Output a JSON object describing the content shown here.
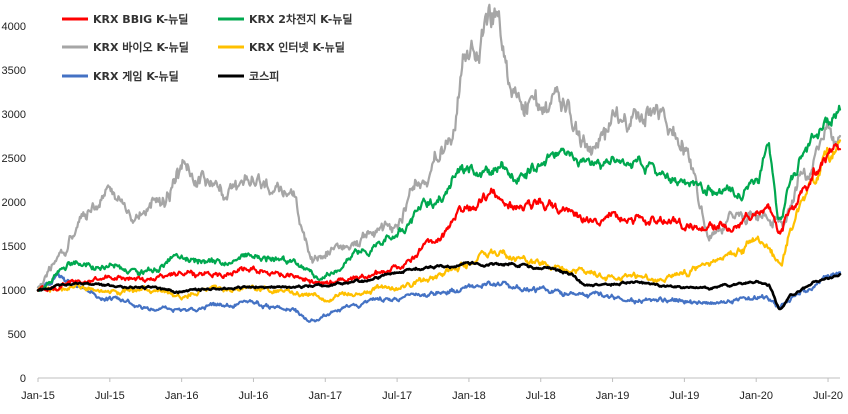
{
  "chart_data": {
    "type": "line",
    "title": "",
    "xlabel": "",
    "ylabel": "",
    "ylim": [
      0,
      4000
    ],
    "yticks": [
      0,
      500,
      1000,
      1500,
      2000,
      2500,
      3000,
      3500,
      4000
    ],
    "xlim": [
      "2015-01",
      "2020-08"
    ],
    "xticks": [
      "Jan-15",
      "Jul-15",
      "Jan-16",
      "Jul-16",
      "Jan-17",
      "Jul-17",
      "Jan-18",
      "Jul-18",
      "Jan-19",
      "Jul-19",
      "Jan-20",
      "Jul-20"
    ],
    "legend_position": "top-left",
    "grid": false,
    "series": [
      {
        "name": "KRX BBIG K-뉴딜",
        "color": "#ff0000",
        "width": 2.2,
        "x": [
          "2015-01",
          "2015-04",
          "2015-07",
          "2015-10",
          "2016-01",
          "2016-04",
          "2016-07",
          "2016-10",
          "2017-01",
          "2017-04",
          "2017-07",
          "2017-10",
          "2018-01",
          "2018-03",
          "2018-05",
          "2018-07",
          "2018-09",
          "2018-11",
          "2019-01",
          "2019-03",
          "2019-05",
          "2019-07",
          "2019-09",
          "2019-11",
          "2020-01",
          "2020-02",
          "2020-03",
          "2020-04",
          "2020-05",
          "2020-06",
          "2020-07",
          "2020-08"
        ],
        "values": [
          1000,
          1080,
          1150,
          1120,
          1200,
          1180,
          1250,
          1150,
          1080,
          1150,
          1250,
          1550,
          1950,
          2100,
          1950,
          2000,
          1900,
          1800,
          1850,
          1800,
          1780,
          1750,
          1720,
          1750,
          1850,
          1950,
          1650,
          1950,
          2150,
          2350,
          2500,
          2600
        ]
      },
      {
        "name": "KRX 2차전지 K-뉴딜",
        "color": "#00a84f",
        "width": 2.2,
        "x": [
          "2015-01",
          "2015-04",
          "2015-07",
          "2015-10",
          "2016-01",
          "2016-04",
          "2016-07",
          "2016-10",
          "2017-01",
          "2017-04",
          "2017-07",
          "2017-10",
          "2018-01",
          "2018-03",
          "2018-05",
          "2018-07",
          "2018-09",
          "2018-11",
          "2019-01",
          "2019-03",
          "2019-05",
          "2019-07",
          "2019-09",
          "2019-11",
          "2020-01",
          "2020-02",
          "2020-03",
          "2020-04",
          "2020-05",
          "2020-06",
          "2020-07",
          "2020-08"
        ],
        "values": [
          1000,
          1300,
          1250,
          1200,
          1350,
          1320,
          1400,
          1330,
          1150,
          1450,
          1650,
          2000,
          2400,
          2350,
          2300,
          2400,
          2500,
          2450,
          2400,
          2450,
          2300,
          2200,
          2150,
          2100,
          2200,
          2600,
          1800,
          2300,
          2600,
          2750,
          2900,
          3050
        ]
      },
      {
        "name": "KRX 바이오 K-뉴딜",
        "color": "#a6a6a6",
        "width": 2.2,
        "x": [
          "2015-01",
          "2015-03",
          "2015-05",
          "2015-07",
          "2015-09",
          "2015-11",
          "2016-01",
          "2016-04",
          "2016-07",
          "2016-10",
          "2016-12",
          "2017-03",
          "2017-06",
          "2017-09",
          "2017-11",
          "2018-01",
          "2018-03",
          "2018-05",
          "2018-07",
          "2018-09",
          "2018-11",
          "2019-01",
          "2019-03",
          "2019-05",
          "2019-07",
          "2019-09",
          "2019-11",
          "2020-01",
          "2020-03",
          "2020-05",
          "2020-07",
          "2020-08"
        ],
        "values": [
          1050,
          1400,
          1900,
          2150,
          1800,
          2000,
          2350,
          2150,
          2200,
          2050,
          1400,
          1500,
          1700,
          2200,
          2650,
          3600,
          4050,
          3200,
          3150,
          3050,
          2600,
          2900,
          3000,
          2900,
          2600,
          1700,
          1800,
          1900,
          1750,
          2300,
          2750,
          2750
        ]
      },
      {
        "name": "KRX 인터넷 K-뉴딜",
        "color": "#ffc000",
        "width": 2.2,
        "x": [
          "2015-01",
          "2015-04",
          "2015-07",
          "2015-10",
          "2016-01",
          "2016-04",
          "2016-07",
          "2016-10",
          "2017-01",
          "2017-04",
          "2017-07",
          "2017-10",
          "2018-01",
          "2018-03",
          "2018-05",
          "2018-07",
          "2018-09",
          "2018-11",
          "2019-01",
          "2019-03",
          "2019-05",
          "2019-07",
          "2019-09",
          "2019-11",
          "2020-01",
          "2020-02",
          "2020-03",
          "2020-04",
          "2020-05",
          "2020-06",
          "2020-07",
          "2020-08"
        ],
        "values": [
          1000,
          1050,
          980,
          1000,
          950,
          1000,
          1000,
          980,
          920,
          980,
          1050,
          1150,
          1300,
          1450,
          1350,
          1300,
          1250,
          1200,
          1150,
          1150,
          1100,
          1200,
          1300,
          1400,
          1550,
          1500,
          1300,
          1700,
          2100,
          2300,
          2500,
          2700
        ]
      },
      {
        "name": "KRX 게임 K-뉴딜",
        "color": "#4472c4",
        "width": 2.2,
        "x": [
          "2015-01",
          "2015-03",
          "2015-05",
          "2015-07",
          "2015-10",
          "2016-01",
          "2016-04",
          "2016-07",
          "2016-10",
          "2016-12",
          "2017-03",
          "2017-06",
          "2017-09",
          "2017-12",
          "2018-03",
          "2018-06",
          "2018-09",
          "2018-12",
          "2019-03",
          "2019-06",
          "2019-09",
          "2019-12",
          "2020-02",
          "2020-03",
          "2020-05",
          "2020-07",
          "2020-08"
        ],
        "values": [
          1000,
          1150,
          1000,
          900,
          800,
          780,
          820,
          840,
          780,
          650,
          820,
          880,
          950,
          1000,
          1080,
          1000,
          950,
          950,
          900,
          880,
          850,
          900,
          900,
          800,
          1000,
          1150,
          1200
        ]
      },
      {
        "name": "코스피",
        "color": "#000000",
        "width": 2.6,
        "x": [
          "2015-01",
          "2015-04",
          "2015-07",
          "2015-10",
          "2016-01",
          "2016-04",
          "2016-07",
          "2016-10",
          "2017-01",
          "2017-04",
          "2017-07",
          "2017-10",
          "2018-01",
          "2018-03",
          "2018-05",
          "2018-07",
          "2018-09",
          "2018-11",
          "2019-01",
          "2019-03",
          "2019-05",
          "2019-07",
          "2019-09",
          "2019-11",
          "2020-01",
          "2020-02",
          "2020-03",
          "2020-04",
          "2020-05",
          "2020-06",
          "2020-07",
          "2020-08"
        ],
        "values": [
          1000,
          1080,
          1050,
          1030,
          990,
          1020,
          1030,
          1030,
          1050,
          1100,
          1200,
          1260,
          1300,
          1280,
          1290,
          1250,
          1200,
          1050,
          1070,
          1100,
          1050,
          1030,
          1020,
          1060,
          1100,
          1050,
          780,
          950,
          1020,
          1080,
          1120,
          1180
        ]
      }
    ]
  }
}
